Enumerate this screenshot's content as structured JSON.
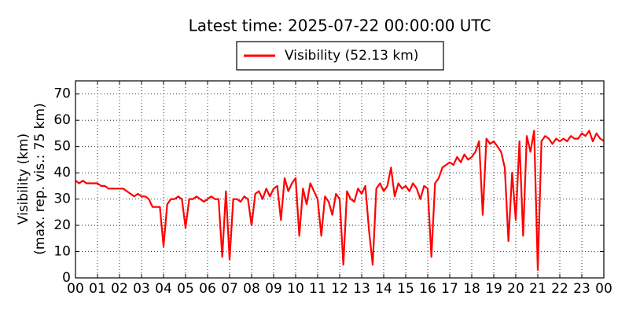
{
  "chart_data": {
    "type": "line",
    "title": "Latest time: 2025-07-22 00:00:00 UTC",
    "ylabel": [
      "Visibility (km)",
      "(max. rep. vis.: 75 km)"
    ],
    "x": [
      0,
      10,
      20,
      30,
      40,
      50,
      60,
      70,
      80,
      90,
      100,
      110,
      120,
      130,
      140,
      150,
      160,
      170,
      180,
      190,
      200,
      210,
      220,
      230,
      240,
      250,
      260,
      270,
      280,
      290,
      300,
      310,
      320,
      330,
      340,
      350,
      360,
      370,
      380,
      390,
      400,
      410,
      420,
      430,
      440,
      450,
      460,
      470,
      480,
      490,
      500,
      510,
      520,
      530,
      540,
      550,
      560,
      570,
      580,
      590,
      600,
      610,
      620,
      630,
      640,
      650,
      660,
      670,
      680,
      690,
      700,
      710,
      720,
      730,
      740,
      750,
      760,
      770,
      780,
      790,
      800,
      810,
      820,
      830,
      840,
      850,
      860,
      870,
      880,
      890,
      900,
      910,
      920,
      930,
      940,
      950,
      960,
      970,
      980,
      990,
      1000,
      1010,
      1020,
      1030,
      1040,
      1050,
      1060,
      1070,
      1080,
      1090,
      1100,
      1110,
      1120,
      1130,
      1140,
      1150,
      1160,
      1170,
      1180,
      1190,
      1200,
      1210,
      1220,
      1230,
      1240,
      1250,
      1260,
      1270,
      1280,
      1290,
      1300,
      1310,
      1320,
      1330,
      1340,
      1350,
      1360,
      1370,
      1380,
      1390,
      1400,
      1410,
      1420,
      1430,
      1440
    ],
    "series": [
      {
        "name": "Visibility (52.13 km)",
        "color": "#ff0000",
        "values": [
          37,
          36,
          37,
          36,
          36,
          36,
          36,
          35,
          35,
          34,
          34,
          34,
          34,
          34,
          33,
          32,
          31,
          32,
          31,
          31,
          30,
          27,
          27,
          27,
          12,
          28,
          30,
          30,
          31,
          30,
          19,
          30,
          30,
          31,
          30,
          29,
          30,
          31,
          30,
          30,
          8,
          33,
          7,
          30,
          30,
          29,
          31,
          30,
          20,
          32,
          33,
          30,
          34,
          31,
          34,
          35,
          22,
          38,
          33,
          36,
          38,
          16,
          34,
          28,
          36,
          33,
          30,
          16,
          31,
          29,
          24,
          32,
          30,
          5,
          33,
          30,
          29,
          34,
          32,
          35,
          18,
          5,
          34,
          36,
          33,
          35,
          42,
          31,
          36,
          34,
          35,
          33,
          36,
          34,
          30,
          35,
          34,
          8,
          36,
          38,
          42,
          43,
          44,
          43,
          46,
          44,
          47,
          45,
          46,
          48,
          52,
          24,
          53,
          51,
          52,
          50,
          48,
          42,
          14,
          40,
          22,
          52,
          16,
          54,
          48,
          56,
          3,
          52,
          54,
          53,
          51,
          53,
          52,
          53,
          52,
          54,
          53,
          53,
          55,
          54,
          56,
          52,
          55,
          53,
          52.13
        ]
      }
    ],
    "xlim": [
      0,
      1440
    ],
    "xticks": [
      {
        "value": 0,
        "label": "00"
      },
      {
        "value": 60,
        "label": "01"
      },
      {
        "value": 120,
        "label": "02"
      },
      {
        "value": 180,
        "label": "03"
      },
      {
        "value": 240,
        "label": "04"
      },
      {
        "value": 300,
        "label": "05"
      },
      {
        "value": 360,
        "label": "06"
      },
      {
        "value": 420,
        "label": "07"
      },
      {
        "value": 480,
        "label": "08"
      },
      {
        "value": 540,
        "label": "09"
      },
      {
        "value": 600,
        "label": "10"
      },
      {
        "value": 660,
        "label": "11"
      },
      {
        "value": 720,
        "label": "12"
      },
      {
        "value": 780,
        "label": "13"
      },
      {
        "value": 840,
        "label": "14"
      },
      {
        "value": 900,
        "label": "15"
      },
      {
        "value": 960,
        "label": "16"
      },
      {
        "value": 1020,
        "label": "17"
      },
      {
        "value": 1080,
        "label": "18"
      },
      {
        "value": 1140,
        "label": "19"
      },
      {
        "value": 1200,
        "label": "20"
      },
      {
        "value": 1260,
        "label": "21"
      },
      {
        "value": 1320,
        "label": "22"
      },
      {
        "value": 1380,
        "label": "23"
      },
      {
        "value": 1440,
        "label": "00"
      }
    ],
    "ylim": [
      0,
      75
    ],
    "yticks": [
      0,
      10,
      20,
      30,
      40,
      50,
      60,
      70
    ],
    "grid": true
  }
}
